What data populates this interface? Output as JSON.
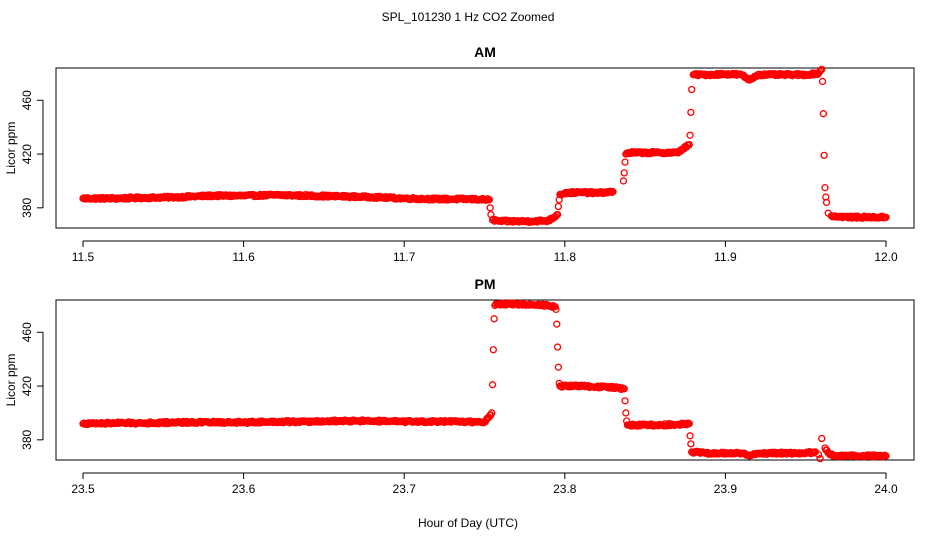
{
  "figure": {
    "suptitle": "SPL_101230  1 Hz CO2 Zoomed",
    "xlabel": "Hour of Day (UTC)"
  },
  "chart_data": [
    {
      "type": "scatter",
      "title": "AM",
      "xlabel": "",
      "ylabel": "Licor ppm",
      "xlim": [
        11.5,
        12.0
      ],
      "ylim": [
        365,
        484
      ],
      "xticks": [
        "11.5",
        "11.6",
        "11.7",
        "11.8",
        "11.9",
        "12.0"
      ],
      "yticks": [
        "380",
        "420",
        "460"
      ],
      "grid": false,
      "series": [
        {
          "color": "#ff0000",
          "marker": "open-circle",
          "x": [
            11.5,
            11.52,
            11.54,
            11.56,
            11.58,
            11.6,
            11.62,
            11.64,
            11.66,
            11.68,
            11.7,
            11.72,
            11.74,
            11.753,
            11.7535,
            11.754,
            11.755,
            11.76,
            11.77,
            11.78,
            11.79,
            11.7955,
            11.796,
            11.7965,
            11.797,
            11.8,
            11.81,
            11.82,
            11.83,
            11.8365,
            11.837,
            11.8375,
            11.838,
            11.84,
            11.85,
            11.86,
            11.87,
            11.8775,
            11.878,
            11.8785,
            11.879,
            11.88,
            11.89,
            11.9,
            11.91,
            11.915,
            11.92,
            11.93,
            11.94,
            11.95,
            11.958,
            11.96,
            11.9605,
            11.961,
            11.9615,
            11.962,
            11.9625,
            11.963,
            11.964,
            11.966,
            11.97,
            11.98,
            11.99,
            12.0
          ],
          "y": [
            387,
            387,
            387.5,
            388,
            389,
            389,
            389.5,
            389,
            388.5,
            388,
            387,
            386.5,
            386.5,
            386,
            380,
            375,
            371,
            370,
            370,
            370,
            370.5,
            375,
            381,
            386,
            390,
            391,
            391.5,
            391,
            392,
            400,
            406,
            414,
            420,
            421,
            421,
            421,
            421,
            427,
            434,
            451,
            468,
            479,
            479,
            479.5,
            479,
            475,
            479,
            479,
            479,
            479,
            480,
            483,
            474,
            450,
            419,
            395,
            388,
            384,
            376,
            374,
            373.5,
            373,
            373,
            373
          ]
        }
      ]
    },
    {
      "type": "scatter",
      "title": "PM",
      "xlabel": "",
      "ylabel": "Licor ppm",
      "xlim": [
        23.5,
        24.0
      ],
      "ylim": [
        365,
        484
      ],
      "xticks": [
        "23.5",
        "23.6",
        "23.7",
        "23.8",
        "23.9",
        "24.0"
      ],
      "yticks": [
        "380",
        "420",
        "460"
      ],
      "grid": false,
      "series": [
        {
          "color": "#ff0000",
          "marker": "open-circle",
          "x": [
            23.5,
            23.52,
            23.54,
            23.56,
            23.58,
            23.6,
            23.62,
            23.64,
            23.66,
            23.68,
            23.7,
            23.72,
            23.74,
            23.75,
            23.7545,
            23.755,
            23.7555,
            23.756,
            23.7565,
            23.757,
            23.758,
            23.77,
            23.78,
            23.79,
            23.794,
            23.7945,
            23.795,
            23.7955,
            23.796,
            23.7965,
            23.797,
            23.8,
            23.81,
            23.82,
            23.83,
            23.837,
            23.8375,
            23.838,
            23.8385,
            23.839,
            23.85,
            23.86,
            23.87,
            23.8775,
            23.878,
            23.8785,
            23.879,
            23.89,
            23.9,
            23.91,
            23.915,
            23.92,
            23.93,
            23.94,
            23.95,
            23.956,
            23.958,
            23.959,
            23.96,
            23.962,
            23.965,
            23.97,
            23.98,
            23.99,
            24.0
          ],
          "y": [
            392,
            392.5,
            392.5,
            393,
            393,
            393,
            393.5,
            393.5,
            394,
            394,
            393.5,
            393.5,
            393.5,
            393,
            400,
            421,
            447,
            470,
            480,
            481,
            481,
            481,
            480.5,
            480,
            479,
            477,
            466,
            449,
            434,
            422,
            420,
            420,
            420,
            419.5,
            419,
            418,
            409,
            400,
            394,
            391,
            391,
            391,
            391.5,
            392,
            383,
            377,
            371,
            370,
            370,
            370,
            368,
            370,
            370,
            370,
            370,
            371,
            369,
            366,
            381,
            374,
            369,
            368,
            368,
            368,
            368
          ]
        }
      ]
    }
  ]
}
